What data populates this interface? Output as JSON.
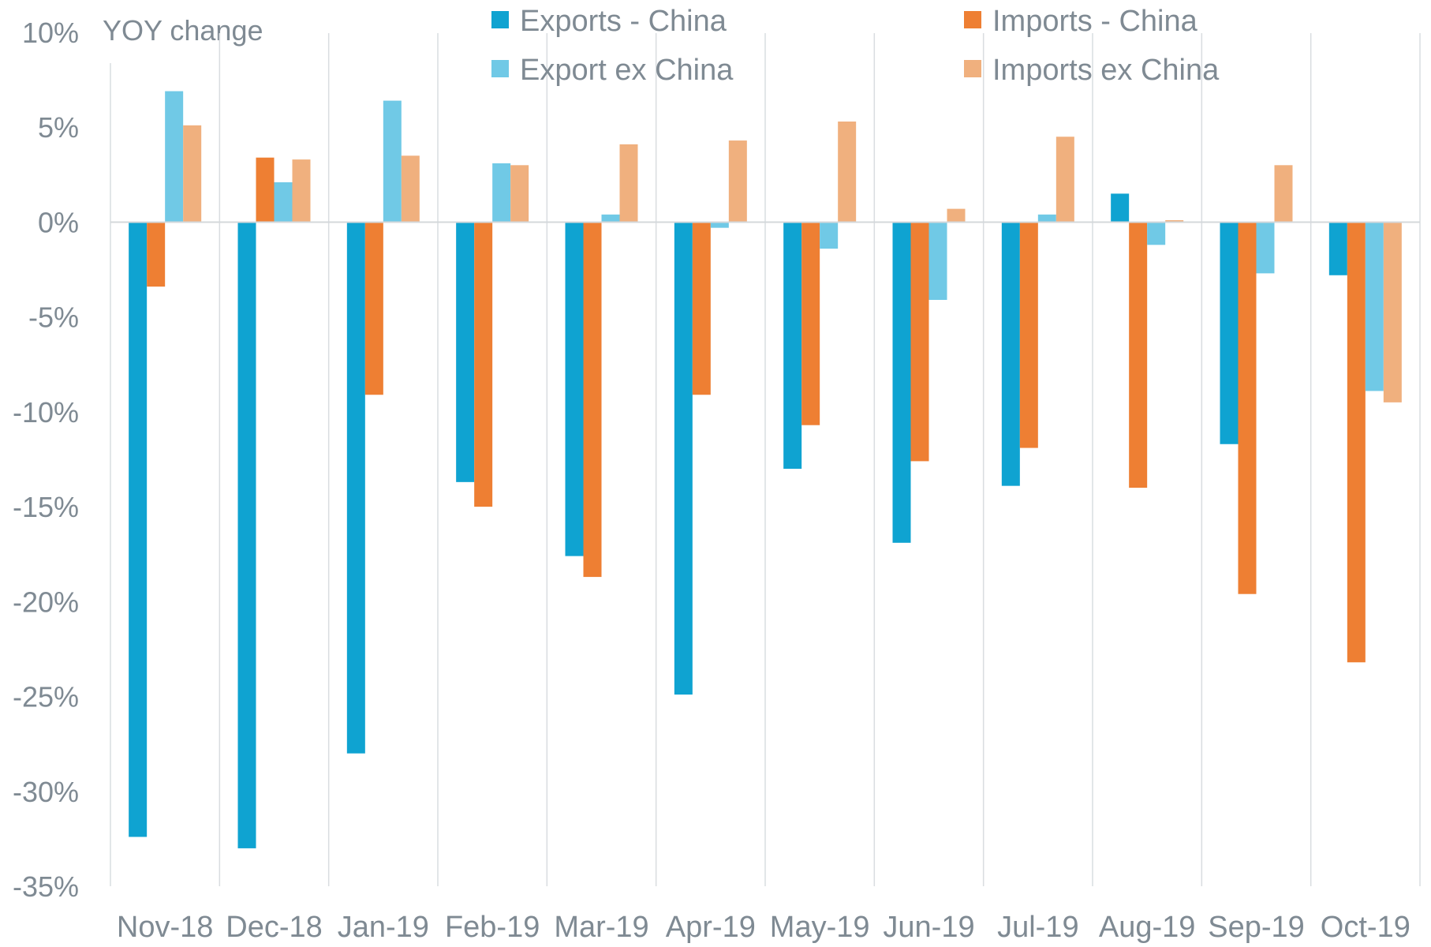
{
  "chart_data": {
    "type": "bar",
    "title": "",
    "ylabel": "YOY change",
    "xlabel": "",
    "ylim": [
      -35,
      10
    ],
    "yticks": [
      10,
      5,
      0,
      -5,
      -10,
      -15,
      -20,
      -25,
      -30,
      -35
    ],
    "ytick_labels": [
      "10%",
      "5%",
      "0%",
      "-5%",
      "-10%",
      "-15%",
      "-20%",
      "-25%",
      "-30%",
      "-35%"
    ],
    "grid": "vertical category separators",
    "legend_position": "top",
    "categories": [
      "Nov-18",
      "Dec-18",
      "Jan-19",
      "Feb-19",
      "Mar-19",
      "Apr-19",
      "May-19",
      "Jun-19",
      "Jul-19",
      "Aug-19",
      "Sep-19",
      "Oct-19"
    ],
    "series": [
      {
        "name": "Exports - China",
        "color": "#0fa3d1",
        "values": [
          -32.4,
          -33.0,
          -28.0,
          -13.7,
          -17.6,
          -24.9,
          -13.0,
          -16.9,
          -13.9,
          1.5,
          -11.7,
          -2.8
        ]
      },
      {
        "name": "Imports - China",
        "color": "#ee7f33",
        "values": [
          -3.4,
          3.4,
          -9.1,
          -15.0,
          -18.7,
          -9.1,
          -10.7,
          -12.6,
          -11.9,
          -14.0,
          -19.6,
          -23.2
        ]
      },
      {
        "name": "Export ex China",
        "color": "#70c9e6",
        "values": [
          6.9,
          2.1,
          6.4,
          3.1,
          0.4,
          -0.3,
          -1.4,
          -4.1,
          0.4,
          -1.2,
          -2.7,
          -8.9
        ]
      },
      {
        "name": "Imports ex China",
        "color": "#f0b07e",
        "values": [
          5.1,
          3.3,
          3.5,
          3.0,
          4.1,
          4.3,
          5.3,
          0.7,
          4.5,
          0.1,
          3.0,
          -9.5
        ]
      }
    ]
  }
}
